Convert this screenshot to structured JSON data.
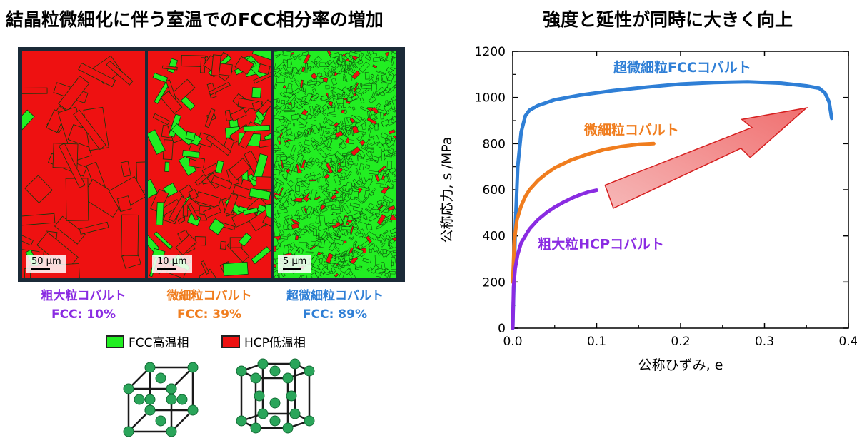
{
  "left": {
    "title": "結晶粒微細化に伴う室温でのFCC相分率の増加",
    "panels": [
      {
        "name": "粗大粒コバルト",
        "fcc_label": "FCC: 10%",
        "scale": "50 µm",
        "color": "#8a2be2",
        "fcc_fraction": 0.1
      },
      {
        "name": "微細粒コバルト",
        "fcc_label": "FCC: 39%",
        "scale": "10 µm",
        "color": "#f07d1e",
        "fcc_fraction": 0.39
      },
      {
        "name": "超微細粒コバルト",
        "fcc_label": "FCC: 89%",
        "scale": "5 µm",
        "color": "#2f7fd6",
        "fcc_fraction": 0.89
      }
    ],
    "legend": [
      {
        "label": "FCC高温相",
        "color": "#22ee22"
      },
      {
        "label": "HCP低温相",
        "color": "#ee1111"
      }
    ]
  },
  "chart_data": {
    "type": "line",
    "title": "強度と延性が同時に大きく向上",
    "xlabel": "公称ひずみ, e",
    "ylabel": "公称応力, s /MPa",
    "xlim": [
      0.0,
      0.4
    ],
    "ylim": [
      0,
      1200
    ],
    "xticks": [
      "0.0",
      "0.1",
      "0.2",
      "0.3",
      "0.4"
    ],
    "yticks": [
      "0",
      "200",
      "400",
      "600",
      "800",
      "1000",
      "1200"
    ],
    "grid": false,
    "series": [
      {
        "name": "超微細粒FCCコバルト",
        "color": "#2f7fd6",
        "x": [
          0.0,
          0.003,
          0.006,
          0.01,
          0.015,
          0.02,
          0.03,
          0.05,
          0.08,
          0.12,
          0.16,
          0.2,
          0.24,
          0.28,
          0.32,
          0.35,
          0.365,
          0.372,
          0.377,
          0.38
        ],
        "y": [
          0,
          420,
          700,
          850,
          920,
          945,
          965,
          990,
          1010,
          1030,
          1045,
          1058,
          1065,
          1068,
          1062,
          1050,
          1040,
          1020,
          980,
          910
        ]
      },
      {
        "name": "微細粒コバルト",
        "color": "#f07d1e",
        "x": [
          0.0,
          0.002,
          0.005,
          0.01,
          0.015,
          0.02,
          0.03,
          0.04,
          0.05,
          0.07,
          0.09,
          0.11,
          0.13,
          0.15,
          0.168
        ],
        "y": [
          200,
          380,
          470,
          530,
          570,
          600,
          640,
          670,
          695,
          730,
          755,
          775,
          788,
          797,
          800
        ]
      },
      {
        "name": "粗大粒HCPコバルト",
        "color": "#8a2be2",
        "x": [
          0.0,
          0.001,
          0.003,
          0.006,
          0.01,
          0.015,
          0.02,
          0.03,
          0.04,
          0.05,
          0.06,
          0.07,
          0.08,
          0.09,
          0.1
        ],
        "y": [
          0,
          180,
          260,
          320,
          370,
          400,
          430,
          470,
          500,
          525,
          545,
          563,
          578,
          590,
          598
        ]
      }
    ],
    "annotations": [
      {
        "text": "超微細粒FCCコバルト",
        "color": "#2f7fd6"
      },
      {
        "text": "微細粒コバルト",
        "color": "#f07d1e"
      },
      {
        "text": "粗大粒HCPコバルト",
        "color": "#8a2be2"
      }
    ]
  }
}
